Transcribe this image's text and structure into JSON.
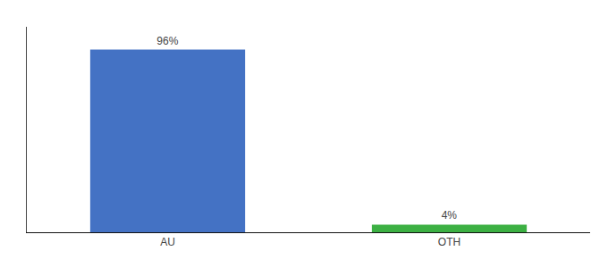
{
  "chart_data": {
    "type": "bar",
    "categories": [
      "AU",
      "OTH"
    ],
    "values": [
      96,
      4
    ],
    "value_labels": [
      "96%",
      "4%"
    ],
    "data_labels": true,
    "colors": [
      "#4472c4",
      "#3cb043"
    ],
    "ylim": [
      0,
      108
    ],
    "tick_labels": "x",
    "grid": false
  }
}
